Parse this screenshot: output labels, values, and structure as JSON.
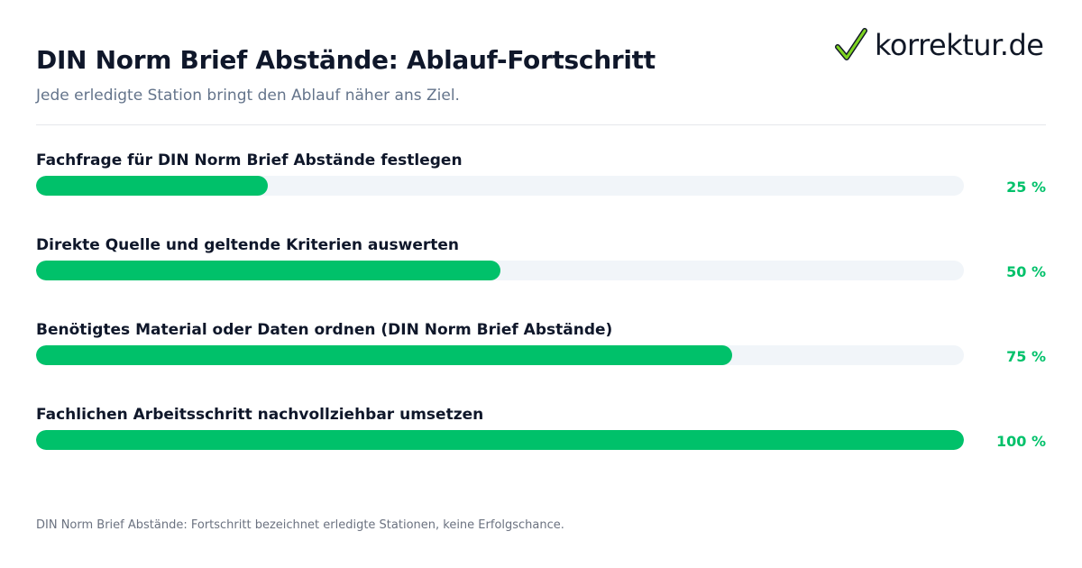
{
  "header": {
    "title": "DIN Norm Brief Abstände: Ablauf-Fortschritt",
    "subtitle": "Jede erledigte Station bringt den Ablauf näher ans Ziel."
  },
  "logo": {
    "text": "korrektur.de",
    "icon": "checkmark-icon"
  },
  "colors": {
    "accent": "#00c16a",
    "track": "#f1f5f9",
    "title": "#0f172a",
    "subtitle": "#64748b"
  },
  "chart_data": {
    "type": "bar",
    "orientation": "horizontal",
    "title": "DIN Norm Brief Abstände: Ablauf-Fortschritt",
    "subtitle": "Jede erledigte Station bringt den Ablauf näher ans Ziel.",
    "categories": [
      "Fachfrage für DIN Norm Brief Abstände festlegen",
      "Direkte Quelle und geltende Kriterien auswerten",
      "Benötigtes Material oder Daten ordnen (DIN Norm Brief Abstände)",
      "Fachlichen Arbeitsschritt nachvollziehbar umsetzen"
    ],
    "values": [
      25,
      50,
      75,
      100
    ],
    "value_labels": [
      "25 %",
      "50 %",
      "75 %",
      "100 %"
    ],
    "xlim": [
      0,
      100
    ],
    "grid": false,
    "legend": "none"
  },
  "footnote": "DIN Norm Brief Abstände: Fortschritt bezeichnet erledigte Stationen, keine Erfolgschance."
}
